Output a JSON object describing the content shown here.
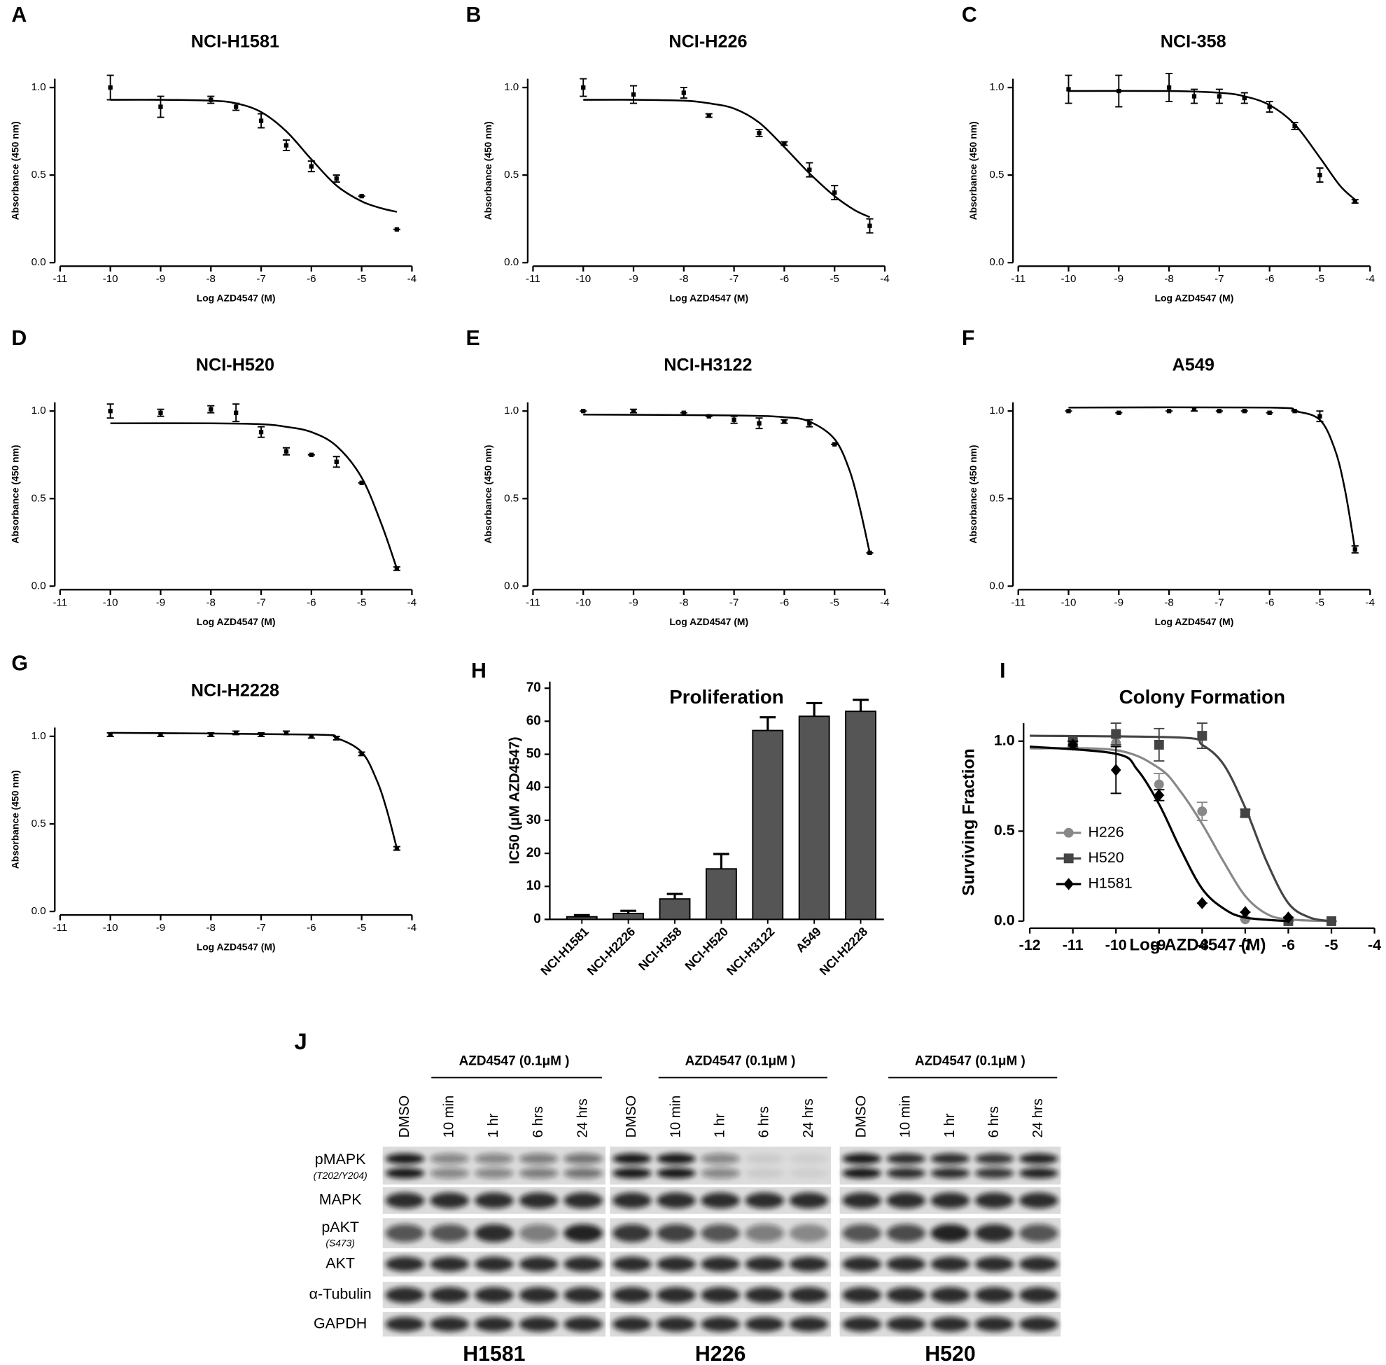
{
  "chart_data": [
    {
      "type": "scatter",
      "label": "A",
      "title": "NCI-H1581",
      "xlabel": "Log AZD4547 (M)",
      "ylabel": "Absorbance (450 nm)",
      "x": [
        -10,
        -9,
        -8,
        -7.5,
        -7,
        -6.5,
        -6,
        -5.5,
        -5,
        -4.3
      ],
      "values": [
        1.0,
        0.89,
        0.93,
        0.89,
        0.81,
        0.67,
        0.55,
        0.48,
        0.38,
        0.19
      ],
      "errors": [
        0.07,
        0.06,
        0.02,
        0.02,
        0.04,
        0.03,
        0.03,
        0.02,
        0,
        0
      ],
      "curve": {
        "x": [
          -10,
          -9,
          -8,
          -7.5,
          -7,
          -6.5,
          -6,
          -5.5,
          -5,
          -4.6,
          -4.3
        ],
        "values": [
          0.93,
          0.93,
          0.925,
          0.91,
          0.86,
          0.75,
          0.59,
          0.44,
          0.35,
          0.31,
          0.29
        ]
      },
      "color": "#000000",
      "marker": "square",
      "xlim": [
        -11,
        -4
      ],
      "ylim": [
        0,
        1.05
      ],
      "xticks": [
        -11,
        -10,
        -9,
        -8,
        -7,
        -6,
        -5,
        -4
      ],
      "yticks": [
        {
          "value": 0,
          "label": "0.0"
        },
        {
          "value": 0.5,
          "label": "0.5"
        },
        {
          "value": 1,
          "label": "1.0"
        }
      ]
    },
    {
      "type": "scatter",
      "label": "B",
      "title": "NCI-H226",
      "xlabel": "Log AZD4547 (M)",
      "ylabel": "Absorbance (450 nm)",
      "x": [
        -10,
        -9,
        -8,
        -7.5,
        -6.5,
        -6,
        -5.5,
        -5,
        -4.3
      ],
      "values": [
        1.0,
        0.96,
        0.97,
        0.84,
        0.74,
        0.68,
        0.53,
        0.4,
        0.21
      ],
      "errors": [
        0.05,
        0.05,
        0.03,
        0.01,
        0.02,
        0.01,
        0.04,
        0.04,
        0.04
      ],
      "curve": {
        "x": [
          -10,
          -9,
          -8,
          -7.5,
          -7,
          -6.5,
          -6,
          -5.5,
          -5,
          -4.6,
          -4.3
        ],
        "values": [
          0.93,
          0.93,
          0.925,
          0.91,
          0.88,
          0.8,
          0.66,
          0.51,
          0.38,
          0.3,
          0.26
        ]
      },
      "color": "#000000",
      "marker": "square",
      "xlim": [
        -11,
        -4
      ],
      "ylim": [
        0,
        1.05
      ],
      "xticks": [
        -11,
        -10,
        -9,
        -8,
        -7,
        -6,
        -5,
        -4
      ],
      "yticks": [
        {
          "value": 0,
          "label": "0.0"
        },
        {
          "value": 0.5,
          "label": "0.5"
        },
        {
          "value": 1,
          "label": "1.0"
        }
      ]
    },
    {
      "type": "scatter",
      "label": "C",
      "title": "NCI-358",
      "xlabel": "Log AZD4547 (M)",
      "ylabel": "Absorbance (450 nm)",
      "x": [
        -10,
        -9,
        -8,
        -7.5,
        -7,
        -6.5,
        -6,
        -5.5,
        -5,
        -4.3
      ],
      "values": [
        0.99,
        0.98,
        1.0,
        0.95,
        0.95,
        0.94,
        0.89,
        0.78,
        0.5,
        0.35
      ],
      "errors": [
        0.08,
        0.09,
        0.08,
        0.04,
        0.04,
        0.03,
        0.03,
        0.02,
        0.04,
        0.01
      ],
      "curve": {
        "x": [
          -10,
          -8,
          -7,
          -6.5,
          -6,
          -5.5,
          -5,
          -4.6,
          -4.3
        ],
        "values": [
          0.98,
          0.98,
          0.97,
          0.95,
          0.9,
          0.79,
          0.6,
          0.44,
          0.36
        ]
      },
      "color": "#000000",
      "marker": "square",
      "xlim": [
        -11,
        -4
      ],
      "ylim": [
        0,
        1.05
      ],
      "xticks": [
        -11,
        -10,
        -9,
        -8,
        -7,
        -6,
        -5,
        -4
      ],
      "yticks": [
        {
          "value": 0,
          "label": "0.0"
        },
        {
          "value": 0.5,
          "label": "0.5"
        },
        {
          "value": 1,
          "label": "1.0"
        }
      ]
    },
    {
      "type": "scatter",
      "label": "D",
      "title": "NCI-H520",
      "xlabel": "Log AZD4547 (M)",
      "ylabel": "Absorbance (450 nm)",
      "x": [
        -10,
        -9,
        -8,
        -7.5,
        -7,
        -6.5,
        -6,
        -5.5,
        -5,
        -4.3
      ],
      "values": [
        1.0,
        0.99,
        1.01,
        0.99,
        0.88,
        0.77,
        0.75,
        0.71,
        0.59,
        0.1
      ],
      "errors": [
        0.04,
        0.02,
        0.02,
        0.05,
        0.03,
        0.02,
        0,
        0.03,
        0,
        0.01
      ],
      "curve": {
        "x": [
          -10,
          -8,
          -7,
          -6.5,
          -6,
          -5.5,
          -5,
          -4.6,
          -4.3
        ],
        "values": [
          0.93,
          0.93,
          0.925,
          0.91,
          0.88,
          0.8,
          0.62,
          0.35,
          0.1
        ]
      },
      "color": "#000000",
      "marker": "square",
      "xlim": [
        -11,
        -4
      ],
      "ylim": [
        0,
        1.05
      ],
      "xticks": [
        -11,
        -10,
        -9,
        -8,
        -7,
        -6,
        -5,
        -4
      ],
      "yticks": [
        {
          "value": 0,
          "label": "0.0"
        },
        {
          "value": 0.5,
          "label": "0.5"
        },
        {
          "value": 1,
          "label": "1.0"
        }
      ]
    },
    {
      "type": "scatter",
      "label": "E",
      "title": "NCI-H3122",
      "xlabel": "Log AZD4547 (M)",
      "ylabel": "Absorbance (450 nm)",
      "x": [
        -10,
        -9,
        -8,
        -7.5,
        -7,
        -6.5,
        -6,
        -5.5,
        -5,
        -4.3
      ],
      "values": [
        1.0,
        1.0,
        0.99,
        0.97,
        0.95,
        0.93,
        0.94,
        0.93,
        0.81,
        0.19
      ],
      "errors": [
        0,
        0.01,
        0,
        0,
        0.02,
        0.03,
        0.01,
        0.02,
        0,
        0
      ],
      "curve": {
        "x": [
          -10,
          -7,
          -6,
          -5.5,
          -5,
          -4.7,
          -4.5,
          -4.3
        ],
        "values": [
          0.98,
          0.975,
          0.965,
          0.94,
          0.84,
          0.66,
          0.45,
          0.19
        ]
      },
      "color": "#000000",
      "marker": "square",
      "xlim": [
        -11,
        -4
      ],
      "ylim": [
        0,
        1.05
      ],
      "xticks": [
        -11,
        -10,
        -9,
        -8,
        -7,
        -6,
        -5,
        -4
      ],
      "yticks": [
        {
          "value": 0,
          "label": "0.0"
        },
        {
          "value": 0.5,
          "label": "0.5"
        },
        {
          "value": 1,
          "label": "1.0"
        }
      ]
    },
    {
      "type": "scatter",
      "label": "F",
      "title": "A549",
      "xlabel": "Log AZD4547 (M)",
      "ylabel": "Absorbance (450 nm)",
      "x": [
        -10,
        -9,
        -8,
        -7.5,
        -7,
        -6.5,
        -6,
        -5.5,
        -5,
        -4.3
      ],
      "values": [
        1.0,
        0.99,
        1.0,
        1.01,
        1.0,
        1.0,
        0.99,
        1.0,
        0.97,
        0.21
      ],
      "errors": [
        0,
        0,
        0,
        0.01,
        0,
        0,
        0,
        0,
        0.03,
        0.02
      ],
      "curve": {
        "x": [
          -10,
          -6,
          -5.5,
          -5,
          -4.7,
          -4.5,
          -4.3
        ],
        "values": [
          1.02,
          1.02,
          1.0,
          0.95,
          0.78,
          0.55,
          0.21
        ]
      },
      "color": "#000000",
      "marker": "square",
      "xlim": [
        -11,
        -4
      ],
      "ylim": [
        0,
        1.05
      ],
      "xticks": [
        -11,
        -10,
        -9,
        -8,
        -7,
        -6,
        -5,
        -4
      ],
      "yticks": [
        {
          "value": 0,
          "label": "0.0"
        },
        {
          "value": 0.5,
          "label": "0.5"
        },
        {
          "value": 1,
          "label": "1.0"
        }
      ]
    },
    {
      "type": "scatter",
      "label": "G",
      "title": "NCI-H2228",
      "xlabel": "Log AZD4547 (M)",
      "ylabel": "Absorbance (450 nm)",
      "x": [
        -10,
        -9,
        -8,
        -7.5,
        -7,
        -6.5,
        -6,
        -5.5,
        -5,
        -4.3
      ],
      "values": [
        1.01,
        1.01,
        1.01,
        1.02,
        1.01,
        1.02,
        1.0,
        0.99,
        0.9,
        0.36
      ],
      "errors": [
        0.01,
        0.01,
        0.01,
        0.01,
        0.01,
        0.01,
        0.01,
        0.01,
        0.01,
        0.01
      ],
      "curve": {
        "x": [
          -10,
          -6,
          -5.5,
          -5,
          -4.7,
          -4.5,
          -4.3
        ],
        "values": [
          1.02,
          1.01,
          0.99,
          0.91,
          0.75,
          0.58,
          0.36
        ]
      },
      "color": "#000000",
      "marker": "square",
      "xlim": [
        -11,
        -4
      ],
      "ylim": [
        0,
        1.05
      ],
      "xticks": [
        -11,
        -10,
        -9,
        -8,
        -7,
        -6,
        -5,
        -4
      ],
      "yticks": [
        {
          "value": 0,
          "label": "0.0"
        },
        {
          "value": 0.5,
          "label": "0.5"
        },
        {
          "value": 1,
          "label": "1.0"
        }
      ]
    },
    {
      "type": "bar",
      "label": "H",
      "title": "Proliferation",
      "ylabel": "IC50 (μM AZD4547)",
      "categories": [
        "NCI-H1581",
        "NCI-H2226",
        "NCI-H358",
        "NCI-H520",
        "NCI-H3122",
        "A549",
        "NCI-H2228"
      ],
      "values": [
        0.8,
        1.8,
        6.2,
        15.3,
        57.2,
        61.5,
        63
      ],
      "errors": [
        0.5,
        0.8,
        1.5,
        4.5,
        4,
        4,
        3.5
      ],
      "color": "#555555",
      "ylim": [
        0,
        72
      ],
      "yticks": [
        0,
        10,
        20,
        30,
        40,
        50,
        60,
        70
      ]
    },
    {
      "type": "scatter",
      "label": "I",
      "title": "Colony Formation",
      "xlabel": "Log AZD4547 (M)",
      "ylabel": "Surviving Fraction",
      "legend": "center left",
      "series": [
        {
          "name": "H226",
          "color": "#888888",
          "marker": "circle",
          "x": [
            -11,
            -10,
            -9,
            -8,
            -7,
            -6,
            -5
          ],
          "values": [
            0.98,
            0.99,
            0.76,
            0.61,
            0.01,
            0,
            0
          ],
          "errors": [
            0.02,
            0.04,
            0.06,
            0.05,
            0,
            0,
            0
          ],
          "curve": {
            "x": [
              -12,
              -10,
              -9,
              -8.5,
              -8,
              -7.5,
              -7,
              -6.5,
              -6,
              -5
            ],
            "values": [
              0.96,
              0.95,
              0.85,
              0.72,
              0.54,
              0.33,
              0.14,
              0.04,
              0.01,
              0
            ]
          }
        },
        {
          "name": "H520",
          "color": "#444444",
          "marker": "square",
          "x": [
            -11,
            -10,
            -9,
            -8,
            -7,
            -6,
            -5
          ],
          "values": [
            1.0,
            1.04,
            0.98,
            1.03,
            0.6,
            0,
            0
          ],
          "errors": [
            0.03,
            0.06,
            0.09,
            0.07,
            0.02,
            0,
            0
          ],
          "curve": {
            "x": [
              -12,
              -8.5,
              -8,
              -7.5,
              -7,
              -6.5,
              -6,
              -5.5,
              -5
            ],
            "values": [
              1.03,
              1.02,
              0.98,
              0.87,
              0.63,
              0.33,
              0.1,
              0.02,
              0
            ]
          }
        },
        {
          "name": "H1581",
          "color": "#000000",
          "marker": "diamond",
          "x": [
            -11,
            -10,
            -9,
            -8,
            -7,
            -6
          ],
          "values": [
            0.98,
            0.84,
            0.7,
            0.1,
            0.05,
            0.02
          ],
          "errors": [
            0.02,
            0.13,
            0.03,
            0,
            0,
            0
          ],
          "curve": {
            "x": [
              -12,
              -10,
              -9.5,
              -9,
              -8.5,
              -8,
              -7.5,
              -7,
              -6
            ],
            "values": [
              0.97,
              0.93,
              0.84,
              0.65,
              0.4,
              0.18,
              0.07,
              0.02,
              0
            ]
          }
        }
      ],
      "xlim": [
        -12,
        -4
      ],
      "ylim": [
        0,
        1.1
      ],
      "xticks": [
        -12,
        -11,
        -10,
        -9,
        -8,
        -7,
        -6,
        -5,
        -4
      ],
      "yticks": [
        {
          "value": 0,
          "label": "0.0"
        },
        {
          "value": 0.5,
          "label": "0.5"
        },
        {
          "value": 1,
          "label": "1.0"
        }
      ]
    }
  ],
  "blot": {
    "label": "J",
    "panels": [
      {
        "header": "AZD4547 (0.1μM )",
        "lanes": [
          "DMSO",
          "10 min",
          "1 hr",
          "6 hrs",
          "24 hrs"
        ],
        "name": "H1581"
      },
      {
        "header": "AZD4547 (0.1μM )",
        "lanes": [
          "DMSO",
          "10 min",
          "1 hr",
          "6 hrs",
          "24 hrs"
        ],
        "name": "H226"
      },
      {
        "header": "AZD4547 (0.1μM )",
        "lanes": [
          "DMSO",
          "10 min",
          "1 hr",
          "6 hrs",
          "24 hrs"
        ],
        "name": "H520"
      }
    ],
    "rows": [
      {
        "name": "pMAPK",
        "note": "(T202/Y204)"
      },
      {
        "name": "MAPK"
      },
      {
        "name": "pAKT",
        "note": "(S473)"
      },
      {
        "name": "AKT"
      },
      {
        "name": "α-Tubulin"
      },
      {
        "name": "GAPDH"
      }
    ]
  }
}
